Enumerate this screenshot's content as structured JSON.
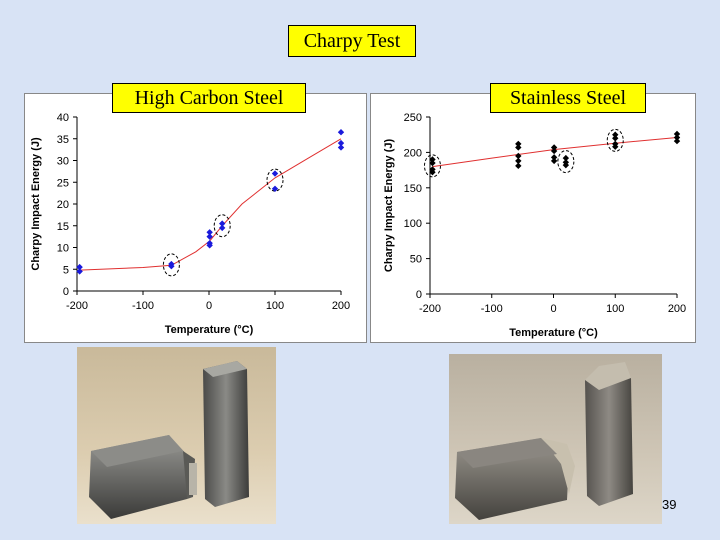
{
  "slide": {
    "title": "Charpy Test",
    "page_number": "39",
    "photo_left_caption": "",
    "photo_right_caption": ""
  },
  "chart_data": [
    {
      "type": "scatter",
      "title": "High Carbon Steel",
      "xlabel": "Temperature (°C)",
      "ylabel": "Charpy Impact Energy (J)",
      "xlim": [
        -200,
        200
      ],
      "ylim": [
        0,
        40
      ],
      "xticks": [
        -200,
        -100,
        0,
        100,
        200
      ],
      "xtick_labels": [
        "-200",
        "-100",
        "0",
        "100",
        "200"
      ],
      "yticks": [
        0,
        5,
        10,
        15,
        20,
        25,
        30,
        35,
        40
      ],
      "ytick_labels": [
        "0",
        "5",
        "10",
        "15",
        "20",
        "25",
        "30",
        "35",
        "40"
      ],
      "grid": false,
      "colors": {
        "points": "#1a1adc",
        "fit": "#e03030",
        "axis": "#000000"
      },
      "points": [
        {
          "x": -196,
          "y": 5.5
        },
        {
          "x": -196,
          "y": 4.5
        },
        {
          "x": -57,
          "y": 6.2
        },
        {
          "x": -57,
          "y": 5.7
        },
        {
          "x": 1,
          "y": 13.5
        },
        {
          "x": 1,
          "y": 12.5
        },
        {
          "x": 1,
          "y": 11
        },
        {
          "x": 1,
          "y": 10.5
        },
        {
          "x": 20,
          "y": 15.5
        },
        {
          "x": 20,
          "y": 14.5
        },
        {
          "x": 100,
          "y": 27
        },
        {
          "x": 100,
          "y": 23.5
        },
        {
          "x": 200,
          "y": 36.5
        },
        {
          "x": 200,
          "y": 34
        },
        {
          "x": 200,
          "y": 33
        }
      ],
      "fit_line": [
        {
          "x": -196,
          "y": 4.8
        },
        {
          "x": -100,
          "y": 5.4
        },
        {
          "x": -57,
          "y": 5.9
        },
        {
          "x": -20,
          "y": 9
        },
        {
          "x": 1,
          "y": 11.5
        },
        {
          "x": 20,
          "y": 15
        },
        {
          "x": 50,
          "y": 20
        },
        {
          "x": 100,
          "y": 26
        },
        {
          "x": 150,
          "y": 30.5
        },
        {
          "x": 200,
          "y": 35
        }
      ],
      "circled": [
        {
          "x": -57,
          "y": 6
        },
        {
          "x": 20,
          "y": 15
        },
        {
          "x": 100,
          "y": 25.5
        }
      ]
    },
    {
      "type": "scatter",
      "title": "Stainless Steel",
      "xlabel": "Temperature (°C)",
      "ylabel": "Charpy Impact Energy (J)",
      "xlim": [
        -200,
        200
      ],
      "ylim": [
        0,
        250
      ],
      "xticks": [
        -200,
        -100,
        0,
        100,
        200
      ],
      "xtick_labels": [
        "-200",
        "-100",
        "0",
        "100",
        "200"
      ],
      "yticks": [
        0,
        50,
        100,
        150,
        200,
        250
      ],
      "ytick_labels": [
        "0",
        "50",
        "100",
        "150",
        "200",
        "250"
      ],
      "grid": false,
      "colors": {
        "points": "#000000",
        "fit": "#e03030",
        "axis": "#000000"
      },
      "points": [
        {
          "x": -196,
          "y": 190
        },
        {
          "x": -196,
          "y": 185
        },
        {
          "x": -196,
          "y": 176
        },
        {
          "x": -196,
          "y": 172
        },
        {
          "x": -57,
          "y": 212
        },
        {
          "x": -57,
          "y": 207
        },
        {
          "x": -57,
          "y": 195
        },
        {
          "x": -57,
          "y": 188
        },
        {
          "x": -57,
          "y": 181
        },
        {
          "x": 1,
          "y": 207
        },
        {
          "x": 1,
          "y": 202
        },
        {
          "x": 1,
          "y": 193
        },
        {
          "x": 1,
          "y": 188
        },
        {
          "x": 20,
          "y": 192
        },
        {
          "x": 20,
          "y": 186
        },
        {
          "x": 20,
          "y": 182
        },
        {
          "x": 100,
          "y": 225
        },
        {
          "x": 100,
          "y": 220
        },
        {
          "x": 100,
          "y": 212
        },
        {
          "x": 100,
          "y": 208
        },
        {
          "x": 200,
          "y": 226
        },
        {
          "x": 200,
          "y": 221
        },
        {
          "x": 200,
          "y": 216
        }
      ],
      "fit_line": [
        {
          "x": -196,
          "y": 180
        },
        {
          "x": -100,
          "y": 192
        },
        {
          "x": 0,
          "y": 204
        },
        {
          "x": 100,
          "y": 213
        },
        {
          "x": 200,
          "y": 221
        }
      ],
      "circled": [
        {
          "x": -196,
          "y": 181
        },
        {
          "x": 20,
          "y": 187
        },
        {
          "x": 100,
          "y": 217
        }
      ]
    }
  ]
}
